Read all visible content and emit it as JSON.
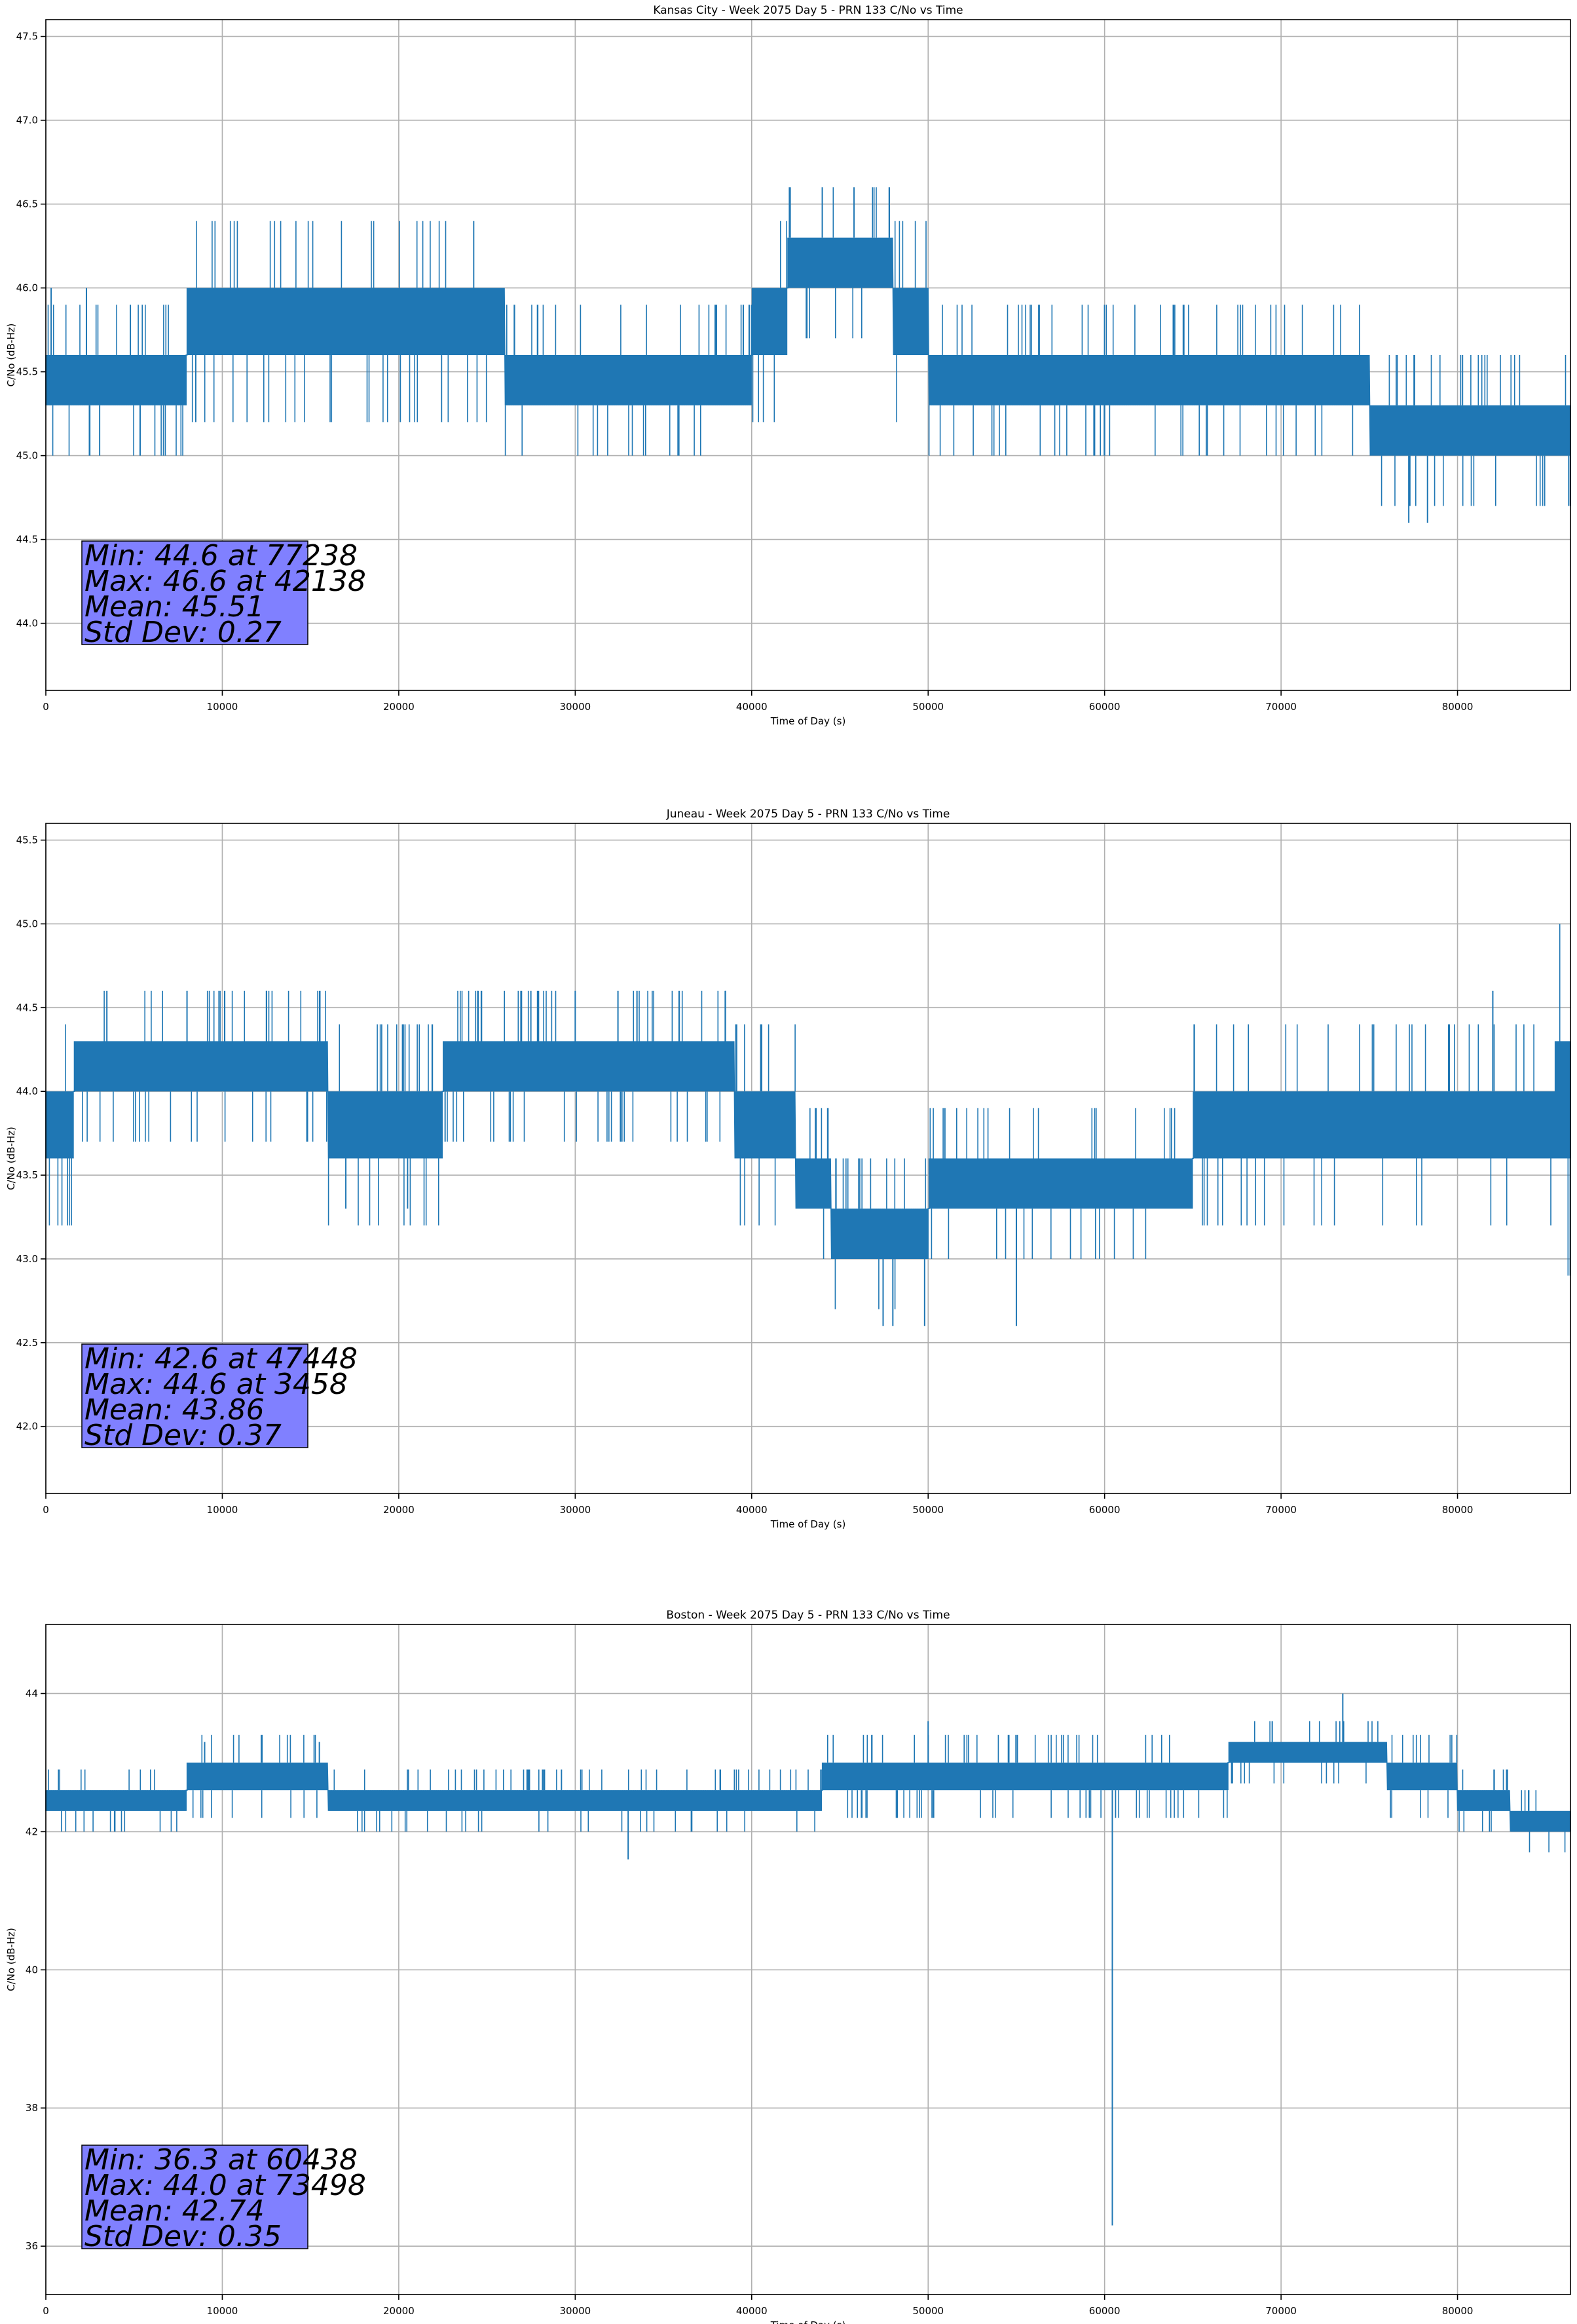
{
  "figure": {
    "line_color": "#1f77b4",
    "stats_box_color": "#8080ff"
  },
  "chart_data": [
    {
      "type": "line",
      "title": "Kansas City - Week 2075 Day 5 - PRN 133 C/No vs Time",
      "xlabel": "Time of Day (s)",
      "ylabel": "C/No (dB-Hz)",
      "xlim": [
        0,
        86400
      ],
      "ylim": [
        43.6,
        47.6
      ],
      "xticks": [
        0,
        10000,
        20000,
        30000,
        40000,
        50000,
        60000,
        70000,
        80000
      ],
      "xtick_labels": [
        "0",
        "10000",
        "20000",
        "30000",
        "40000",
        "50000",
        "60000",
        "70000",
        "80000"
      ],
      "yticks": [
        44.0,
        44.5,
        45.0,
        45.5,
        46.0,
        46.5,
        47.0,
        47.5
      ],
      "ytick_labels": [
        "44.0",
        "44.5",
        "45.0",
        "45.5",
        "46.0",
        "46.5",
        "47.0",
        "47.5"
      ],
      "grid": true,
      "series": [
        {
          "x": [
            0,
            8000,
            8000,
            26000,
            26000,
            36000,
            36000,
            40000,
            40000,
            42000,
            42000,
            48000,
            48000,
            50000,
            50000,
            75000,
            75000,
            86400
          ],
          "y_low": [
            45.3,
            45.3,
            45.6,
            45.6,
            45.3,
            45.3,
            45.3,
            45.3,
            45.6,
            45.6,
            46.0,
            46.0,
            45.6,
            45.6,
            45.3,
            45.3,
            45.0,
            45.0
          ],
          "y_high": [
            45.6,
            45.6,
            46.0,
            46.0,
            45.6,
            45.6,
            45.6,
            45.6,
            46.0,
            46.0,
            46.3,
            46.3,
            46.0,
            46.0,
            45.6,
            45.6,
            45.3,
            45.3
          ],
          "spikes": [
            {
              "x": 42138,
              "y": 46.6
            },
            {
              "x": 44000,
              "y": 46.6
            },
            {
              "x": 45800,
              "y": 46.6
            },
            {
              "x": 47800,
              "y": 46.6
            },
            {
              "x": 77238,
              "y": 44.6
            },
            {
              "x": 77300,
              "y": 44.7
            },
            {
              "x": 78300,
              "y": 44.6
            },
            {
              "x": 300,
              "y": 46.0
            },
            {
              "x": 2300,
              "y": 46.0
            }
          ]
        }
      ],
      "stats": {
        "min": "Min: 44.6 at 77238",
        "max": "Max: 46.6 at 42138",
        "mean": "Mean: 45.51",
        "std": "Std Dev: 0.27"
      }
    },
    {
      "type": "line",
      "title": "Juneau - Week 2075 Day 5 - PRN 133 C/No vs Time",
      "xlabel": "Time of Day (s)",
      "ylabel": "C/No (dB-Hz)",
      "xlim": [
        0,
        86400
      ],
      "ylim": [
        41.6,
        45.6
      ],
      "xticks": [
        0,
        10000,
        20000,
        30000,
        40000,
        50000,
        60000,
        70000,
        80000
      ],
      "xtick_labels": [
        "0",
        "10000",
        "20000",
        "30000",
        "40000",
        "50000",
        "60000",
        "70000",
        "80000"
      ],
      "yticks": [
        42.0,
        42.5,
        43.0,
        43.5,
        44.0,
        44.5,
        45.0,
        45.5
      ],
      "ytick_labels": [
        "42.0",
        "42.5",
        "43.0",
        "43.5",
        "44.0",
        "44.5",
        "45.0",
        "45.5"
      ],
      "grid": true,
      "series": [
        {
          "x": [
            0,
            1600,
            1600,
            16000,
            16000,
            22500,
            22500,
            39000,
            39000,
            42500,
            42500,
            44500,
            44500,
            50000,
            50000,
            65000,
            65000,
            85500,
            85500,
            86400
          ],
          "y_low": [
            43.6,
            43.6,
            44.0,
            44.0,
            43.6,
            43.6,
            44.0,
            44.0,
            43.6,
            43.6,
            43.3,
            43.3,
            43.0,
            43.0,
            43.3,
            43.3,
            43.6,
            43.6,
            43.6,
            43.6
          ],
          "y_high": [
            44.0,
            44.0,
            44.3,
            44.3,
            44.0,
            44.0,
            44.3,
            44.3,
            44.0,
            44.0,
            43.6,
            43.6,
            43.3,
            43.3,
            43.6,
            43.6,
            44.0,
            44.3,
            44.3,
            44.3
          ],
          "spikes": [
            {
              "x": 3458,
              "y": 44.6
            },
            {
              "x": 8000,
              "y": 44.6
            },
            {
              "x": 12500,
              "y": 44.6
            },
            {
              "x": 24500,
              "y": 44.6
            },
            {
              "x": 30000,
              "y": 44.6
            },
            {
              "x": 33500,
              "y": 44.6
            },
            {
              "x": 38500,
              "y": 44.6
            },
            {
              "x": 82000,
              "y": 44.6
            },
            {
              "x": 47448,
              "y": 42.6
            },
            {
              "x": 48000,
              "y": 42.6
            },
            {
              "x": 49800,
              "y": 42.6
            },
            {
              "x": 55000,
              "y": 42.6
            },
            {
              "x": 17000,
              "y": 43.3
            },
            {
              "x": 20500,
              "y": 43.3
            }
          ]
        }
      ],
      "stats": {
        "min": "Min: 42.6 at 47448",
        "max": "Max: 44.6 at 3458",
        "mean": "Mean: 43.86",
        "std": "Std Dev: 0.37"
      }
    },
    {
      "type": "line",
      "title": "Boston - Week 2075 Day 5 - PRN 133 C/No vs Time",
      "xlabel": "Time of Day (s)",
      "ylabel": "C/No (dB-Hz)",
      "xlim": [
        0,
        86400
      ],
      "ylim": [
        35.3,
        45.0
      ],
      "xticks": [
        0,
        10000,
        20000,
        30000,
        40000,
        50000,
        60000,
        70000,
        80000
      ],
      "xtick_labels": [
        "0",
        "10000",
        "20000",
        "30000",
        "40000",
        "50000",
        "60000",
        "70000",
        "80000"
      ],
      "yticks": [
        36,
        38,
        40,
        42,
        44
      ],
      "ytick_labels": [
        "36",
        "38",
        "40",
        "42",
        "44"
      ],
      "grid": true,
      "series": [
        {
          "x": [
            0,
            8000,
            8000,
            16000,
            16000,
            44000,
            44000,
            67000,
            67000,
            76000,
            76000,
            80000,
            80000,
            83000,
            83000,
            86400
          ],
          "y_low": [
            42.3,
            42.3,
            42.6,
            42.6,
            42.3,
            42.3,
            42.6,
            42.6,
            43.0,
            43.0,
            42.6,
            42.6,
            42.3,
            42.3,
            42.0,
            42.0
          ],
          "y_high": [
            42.6,
            42.6,
            43.0,
            43.0,
            42.6,
            42.6,
            43.0,
            43.0,
            43.3,
            43.3,
            43.0,
            43.0,
            42.6,
            42.6,
            42.3,
            42.3
          ],
          "spikes": [
            {
              "x": 60438,
              "y": 36.3
            },
            {
              "x": 33000,
              "y": 41.6
            },
            {
              "x": 73498,
              "y": 44.0
            },
            {
              "x": 9000,
              "y": 43.3
            },
            {
              "x": 15500,
              "y": 43.3
            },
            {
              "x": 50000,
              "y": 43.6
            },
            {
              "x": 69500,
              "y": 43.6
            }
          ]
        }
      ],
      "stats": {
        "min": "Min: 36.3 at 60438",
        "max": "Max: 44.0 at 73498",
        "mean": "Mean: 42.74",
        "std": "Std Dev: 0.35"
      }
    }
  ]
}
